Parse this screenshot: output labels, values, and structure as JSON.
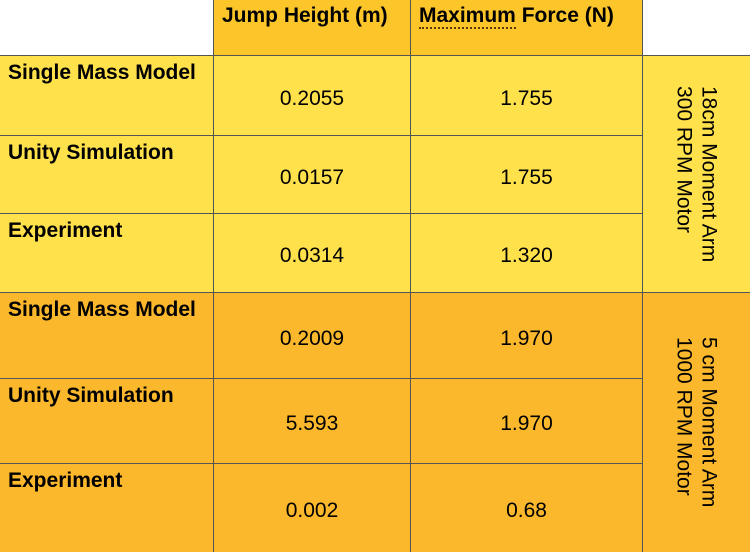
{
  "table": {
    "columns": {
      "jump_height": "Jump Height (m)",
      "max_force_word1": "Maximum",
      "max_force_rest": " Force (N)"
    },
    "groups": [
      {
        "label": "18cm Moment Arm\n300 RPM Motor",
        "rows": [
          {
            "label": "Single Mass Model",
            "jump": "0.2055",
            "force": "1.755"
          },
          {
            "label": "Unity Simulation",
            "jump": "0.0157",
            "force": "1.755"
          },
          {
            "label": "Experiment",
            "jump": "0.0314",
            "force": "1.320"
          }
        ]
      },
      {
        "label": "5 cm Moment Arm\n1000 RPM Motor",
        "rows": [
          {
            "label": "Single Mass Model",
            "jump": "0.2009",
            "force": "1.970"
          },
          {
            "label": "Unity Simulation",
            "jump": "5.593",
            "force": "1.970"
          },
          {
            "label": "Experiment",
            "jump": "0.002",
            "force": "0.68"
          }
        ]
      }
    ],
    "colors": {
      "header": "#fcc62a",
      "group1": "#ffe14c",
      "group2": "#fbb82c"
    }
  }
}
